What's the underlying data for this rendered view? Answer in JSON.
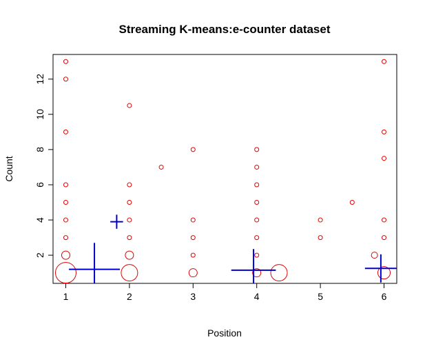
{
  "chart_data": {
    "type": "scatter",
    "title": "Streaming K-means:e-counter dataset",
    "xlabel": "Position",
    "ylabel": "Count",
    "xlim": [
      0.8,
      6.2
    ],
    "ylim": [
      0.4,
      13.4
    ],
    "xticks": [
      "1",
      "2",
      "3",
      "4",
      "5",
      "6"
    ],
    "yticks": [
      "2",
      "4",
      "6",
      "8",
      "10",
      "12"
    ],
    "grid": false,
    "colors": {
      "points": "#e00000",
      "centers": "#0000cc"
    },
    "points": [
      {
        "x": 1,
        "y": 13,
        "size": 1
      },
      {
        "x": 1,
        "y": 12,
        "size": 1
      },
      {
        "x": 1,
        "y": 9,
        "size": 1
      },
      {
        "x": 1,
        "y": 6,
        "size": 1
      },
      {
        "x": 1,
        "y": 5,
        "size": 1
      },
      {
        "x": 1,
        "y": 4,
        "size": 1
      },
      {
        "x": 1,
        "y": 3,
        "size": 1
      },
      {
        "x": 1,
        "y": 2,
        "size": 2
      },
      {
        "x": 1,
        "y": 1,
        "size": 5
      },
      {
        "x": 2,
        "y": 10.5,
        "size": 1
      },
      {
        "x": 2,
        "y": 6,
        "size": 1
      },
      {
        "x": 2,
        "y": 5,
        "size": 1
      },
      {
        "x": 2,
        "y": 4,
        "size": 1
      },
      {
        "x": 2,
        "y": 3,
        "size": 1
      },
      {
        "x": 2,
        "y": 2,
        "size": 2
      },
      {
        "x": 2,
        "y": 1,
        "size": 4
      },
      {
        "x": 2.5,
        "y": 7,
        "size": 1
      },
      {
        "x": 3,
        "y": 8,
        "size": 1
      },
      {
        "x": 3,
        "y": 4,
        "size": 1
      },
      {
        "x": 3,
        "y": 3,
        "size": 1
      },
      {
        "x": 3,
        "y": 2,
        "size": 1
      },
      {
        "x": 3,
        "y": 1,
        "size": 2
      },
      {
        "x": 4,
        "y": 8,
        "size": 1
      },
      {
        "x": 4,
        "y": 7,
        "size": 1
      },
      {
        "x": 4,
        "y": 6,
        "size": 1
      },
      {
        "x": 4,
        "y": 5,
        "size": 1
      },
      {
        "x": 4,
        "y": 4,
        "size": 1
      },
      {
        "x": 4,
        "y": 3,
        "size": 1
      },
      {
        "x": 4,
        "y": 2,
        "size": 1
      },
      {
        "x": 4,
        "y": 1,
        "size": 2
      },
      {
        "x": 4.35,
        "y": 1,
        "size": 4
      },
      {
        "x": 5,
        "y": 4,
        "size": 1
      },
      {
        "x": 5,
        "y": 3,
        "size": 1
      },
      {
        "x": 5.5,
        "y": 5,
        "size": 1
      },
      {
        "x": 5.85,
        "y": 2,
        "size": 1.5
      },
      {
        "x": 6,
        "y": 13,
        "size": 1
      },
      {
        "x": 6,
        "y": 9,
        "size": 1
      },
      {
        "x": 6,
        "y": 7.5,
        "size": 1
      },
      {
        "x": 6,
        "y": 4,
        "size": 1
      },
      {
        "x": 6,
        "y": 3,
        "size": 1
      },
      {
        "x": 6,
        "y": 1,
        "size": 3
      }
    ],
    "centers": [
      {
        "x": 1.45,
        "y": 1.2,
        "dx": 0.4,
        "dy": 1.5
      },
      {
        "x": 1.8,
        "y": 3.9,
        "dx": 0.1,
        "dy": 0.4
      },
      {
        "x": 3.95,
        "y": 1.15,
        "dx": 0.35,
        "dy": 1.2
      },
      {
        "x": 5.95,
        "y": 1.25,
        "dx": 0.25,
        "dy": 0.8
      }
    ]
  }
}
